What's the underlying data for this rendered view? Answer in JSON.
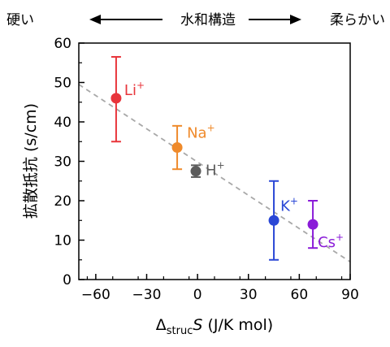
{
  "top_scale": {
    "left_label": "硬い",
    "center_label": "水和構造",
    "right_label": "柔らかい"
  },
  "chart_data": {
    "type": "scatter",
    "title": "",
    "xlabel_delta": "Δ",
    "xlabel_sub": "struc",
    "xlabel_var": "S",
    "xlabel_unit": " (J/K mol)",
    "ylabel": "拡散抵抗 (s/cm)",
    "xlim": [
      -70,
      90
    ],
    "ylim": [
      0,
      60
    ],
    "xticks": [
      -60,
      -30,
      0,
      30,
      60,
      90
    ],
    "xtick_labels": [
      "−60",
      "−30",
      "0",
      "30",
      "60",
      "90"
    ],
    "yticks": [
      0,
      10,
      20,
      30,
      40,
      50,
      60
    ],
    "ytick_labels": [
      "0",
      "10",
      "20",
      "30",
      "40",
      "50",
      "60"
    ],
    "grid": false,
    "points": [
      {
        "ion": "Li",
        "charge": "+",
        "x": -48,
        "y": 46,
        "err_low": 35,
        "err_high": 56.5,
        "color": "#e8353b"
      },
      {
        "ion": "Na",
        "charge": "+",
        "x": -12,
        "y": 33.5,
        "err_low": 28,
        "err_high": 39,
        "color": "#ef8a2b"
      },
      {
        "ion": "H",
        "charge": "+",
        "x": -1,
        "y": 27.5,
        "err_low": 26,
        "err_high": 29,
        "color": "#5c5c5c"
      },
      {
        "ion": "K",
        "charge": "+",
        "x": 45,
        "y": 15,
        "err_low": 5,
        "err_high": 25,
        "color": "#2a47d6"
      },
      {
        "ion": "Cs",
        "charge": "+",
        "x": 68,
        "y": 14,
        "err_low": 8,
        "err_high": 20,
        "color": "#8a1bd8"
      }
    ],
    "trendline": {
      "x": [
        -70,
        90
      ],
      "y": [
        49.5,
        4.5
      ],
      "style": "dashed",
      "color": "#a8a8a8"
    }
  }
}
